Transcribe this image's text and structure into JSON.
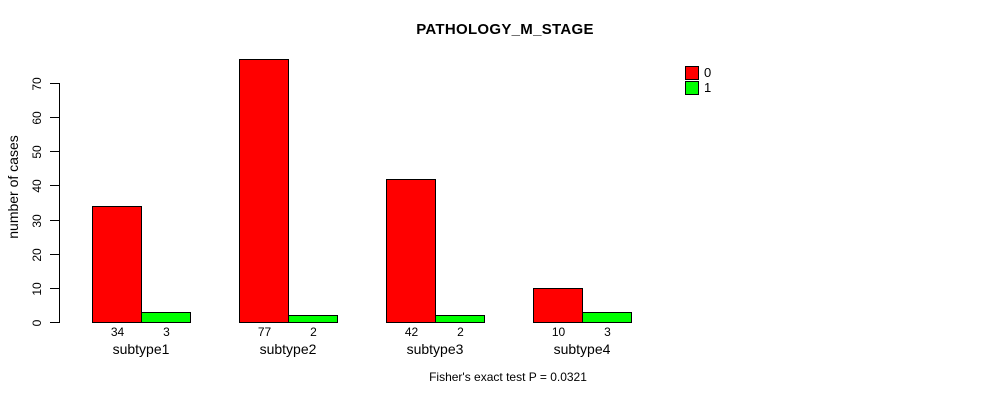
{
  "chart_data": {
    "type": "bar",
    "title": "PATHOLOGY_M_STAGE",
    "xlabel": "",
    "ylabel": "number of cases",
    "categories": [
      "subtype1",
      "subtype2",
      "subtype3",
      "subtype4"
    ],
    "series": [
      {
        "name": "0",
        "color": "#FF0000",
        "values": [
          34,
          77,
          42,
          10
        ]
      },
      {
        "name": "1",
        "color": "#00FF00",
        "values": [
          3,
          2,
          2,
          3
        ]
      }
    ],
    "bar_value_labels": [
      [
        34,
        3
      ],
      [
        77,
        2
      ],
      [
        42,
        2
      ],
      [
        10,
        3
      ]
    ],
    "yticks": [
      0,
      10,
      20,
      30,
      40,
      50,
      60,
      70
    ],
    "ylim": [
      0,
      77
    ],
    "grid": false,
    "legend": {
      "position": "top-right",
      "entries": [
        {
          "label": "0",
          "color": "#FF0000"
        },
        {
          "label": "1",
          "color": "#00FF00"
        }
      ]
    },
    "caption": "Fisher's exact test P = 0.0321",
    "axis_color": "#000000",
    "background_color": "#FFFFFF"
  }
}
